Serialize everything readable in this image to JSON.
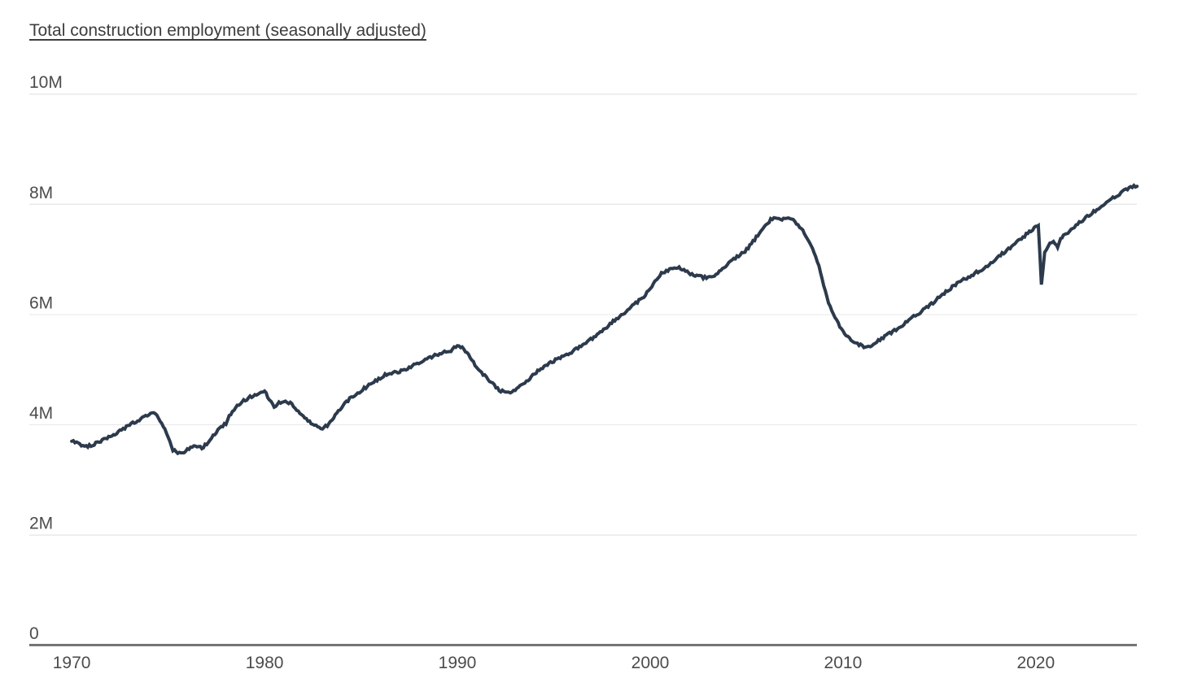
{
  "title": {
    "text": "Total construction employment (seasonally adjusted)"
  },
  "chart_data": {
    "type": "line",
    "title": "Total construction employment (seasonally adjusted)",
    "xlabel": "",
    "ylabel": "",
    "y_unit": "millions of workers",
    "xlim": [
      1967.8,
      2025.24
    ],
    "ylim": [
      0,
      10
    ],
    "grid": "horizontal-only",
    "legend": "none",
    "x_ticks": [
      1970,
      1980,
      1990,
      2000,
      2010,
      2020
    ],
    "y_ticks": [
      {
        "value": 0,
        "label": "0"
      },
      {
        "value": 2,
        "label": "2M"
      },
      {
        "value": 4,
        "label": "4M"
      },
      {
        "value": 6,
        "label": "6M"
      },
      {
        "value": 8,
        "label": "8M"
      },
      {
        "value": 10,
        "label": "10M"
      }
    ],
    "colors": {
      "line": "#2c3a4c",
      "grid": "#e8e8e8",
      "axis": "#757575",
      "tick_label": "#4c4c4c",
      "title": "#3d3d3d"
    },
    "noise_amplitude": 0.05,
    "series": [
      {
        "name": "Total construction employment (seasonally adjusted)",
        "points": [
          [
            1970,
            3.7
          ],
          [
            1970.25,
            3.67
          ],
          [
            1970.5,
            3.62
          ],
          [
            1970.75,
            3.6
          ],
          [
            1971,
            3.63
          ],
          [
            1971.25,
            3.66
          ],
          [
            1971.5,
            3.7
          ],
          [
            1971.75,
            3.74
          ],
          [
            1972,
            3.79
          ],
          [
            1972.25,
            3.84
          ],
          [
            1972.5,
            3.89
          ],
          [
            1972.75,
            3.94
          ],
          [
            1973,
            4.0
          ],
          [
            1973.25,
            4.05
          ],
          [
            1973.5,
            4.09
          ],
          [
            1973.75,
            4.13
          ],
          [
            1974,
            4.2
          ],
          [
            1974.25,
            4.22
          ],
          [
            1974.5,
            4.12
          ],
          [
            1974.75,
            3.98
          ],
          [
            1975,
            3.75
          ],
          [
            1975.25,
            3.55
          ],
          [
            1975.5,
            3.48
          ],
          [
            1975.75,
            3.5
          ],
          [
            1976,
            3.55
          ],
          [
            1976.25,
            3.6
          ],
          [
            1976.5,
            3.62
          ],
          [
            1976.75,
            3.58
          ],
          [
            1977,
            3.65
          ],
          [
            1977.25,
            3.76
          ],
          [
            1977.5,
            3.86
          ],
          [
            1977.75,
            3.96
          ],
          [
            1978,
            4.03
          ],
          [
            1978.25,
            4.2
          ],
          [
            1978.5,
            4.32
          ],
          [
            1978.75,
            4.4
          ],
          [
            1979,
            4.45
          ],
          [
            1979.25,
            4.5
          ],
          [
            1979.5,
            4.54
          ],
          [
            1979.75,
            4.58
          ],
          [
            1980,
            4.62
          ],
          [
            1980.25,
            4.45
          ],
          [
            1980.5,
            4.32
          ],
          [
            1980.75,
            4.4
          ],
          [
            1981,
            4.44
          ],
          [
            1981.25,
            4.4
          ],
          [
            1981.5,
            4.35
          ],
          [
            1981.75,
            4.25
          ],
          [
            1982,
            4.16
          ],
          [
            1982.25,
            4.08
          ],
          [
            1982.5,
            4.02
          ],
          [
            1982.75,
            3.95
          ],
          [
            1983,
            3.93
          ],
          [
            1983.25,
            3.99
          ],
          [
            1983.5,
            4.1
          ],
          [
            1983.75,
            4.22
          ],
          [
            1984,
            4.32
          ],
          [
            1984.25,
            4.42
          ],
          [
            1984.5,
            4.5
          ],
          [
            1984.75,
            4.56
          ],
          [
            1985,
            4.62
          ],
          [
            1985.25,
            4.68
          ],
          [
            1985.5,
            4.74
          ],
          [
            1985.75,
            4.8
          ],
          [
            1986,
            4.85
          ],
          [
            1986.25,
            4.9
          ],
          [
            1986.5,
            4.93
          ],
          [
            1986.75,
            4.95
          ],
          [
            1987,
            4.97
          ],
          [
            1987.25,
            5.0
          ],
          [
            1987.5,
            5.04
          ],
          [
            1987.75,
            5.08
          ],
          [
            1988,
            5.12
          ],
          [
            1988.25,
            5.16
          ],
          [
            1988.5,
            5.2
          ],
          [
            1988.75,
            5.24
          ],
          [
            1989,
            5.28
          ],
          [
            1989.25,
            5.32
          ],
          [
            1989.5,
            5.33
          ],
          [
            1989.75,
            5.36
          ],
          [
            1990,
            5.45
          ],
          [
            1990.25,
            5.4
          ],
          [
            1990.5,
            5.3
          ],
          [
            1990.75,
            5.18
          ],
          [
            1991,
            5.05
          ],
          [
            1991.25,
            4.94
          ],
          [
            1991.5,
            4.86
          ],
          [
            1991.75,
            4.78
          ],
          [
            1992,
            4.68
          ],
          [
            1992.25,
            4.62
          ],
          [
            1992.5,
            4.58
          ],
          [
            1992.75,
            4.6
          ],
          [
            1993,
            4.64
          ],
          [
            1993.25,
            4.7
          ],
          [
            1993.5,
            4.77
          ],
          [
            1993.75,
            4.84
          ],
          [
            1994,
            4.92
          ],
          [
            1994.25,
            5.0
          ],
          [
            1994.5,
            5.06
          ],
          [
            1994.75,
            5.12
          ],
          [
            1995,
            5.16
          ],
          [
            1995.25,
            5.2
          ],
          [
            1995.5,
            5.24
          ],
          [
            1995.75,
            5.28
          ],
          [
            1996,
            5.33
          ],
          [
            1996.25,
            5.39
          ],
          [
            1996.5,
            5.45
          ],
          [
            1996.75,
            5.51
          ],
          [
            1997,
            5.57
          ],
          [
            1997.25,
            5.63
          ],
          [
            1997.5,
            5.69
          ],
          [
            1997.75,
            5.77
          ],
          [
            1998,
            5.85
          ],
          [
            1998.25,
            5.92
          ],
          [
            1998.5,
            5.99
          ],
          [
            1998.75,
            6.06
          ],
          [
            1999,
            6.13
          ],
          [
            1999.25,
            6.2
          ],
          [
            1999.5,
            6.28
          ],
          [
            1999.75,
            6.36
          ],
          [
            2000,
            6.46
          ],
          [
            2000.25,
            6.6
          ],
          [
            2000.5,
            6.72
          ],
          [
            2000.75,
            6.78
          ],
          [
            2001,
            6.81
          ],
          [
            2001.25,
            6.84
          ],
          [
            2001.5,
            6.86
          ],
          [
            2001.75,
            6.8
          ],
          [
            2002,
            6.76
          ],
          [
            2002.25,
            6.72
          ],
          [
            2002.5,
            6.7
          ],
          [
            2002.75,
            6.67
          ],
          [
            2003,
            6.66
          ],
          [
            2003.25,
            6.68
          ],
          [
            2003.5,
            6.74
          ],
          [
            2003.75,
            6.82
          ],
          [
            2004,
            6.9
          ],
          [
            2004.25,
            6.98
          ],
          [
            2004.5,
            7.04
          ],
          [
            2004.75,
            7.1
          ],
          [
            2005,
            7.18
          ],
          [
            2005.25,
            7.28
          ],
          [
            2005.5,
            7.4
          ],
          [
            2005.75,
            7.52
          ],
          [
            2006,
            7.62
          ],
          [
            2006.25,
            7.72
          ],
          [
            2006.5,
            7.76
          ],
          [
            2006.75,
            7.73
          ],
          [
            2007,
            7.75
          ],
          [
            2007.25,
            7.73
          ],
          [
            2007.5,
            7.69
          ],
          [
            2007.75,
            7.6
          ],
          [
            2008,
            7.48
          ],
          [
            2008.25,
            7.33
          ],
          [
            2008.5,
            7.14
          ],
          [
            2008.75,
            6.88
          ],
          [
            2009,
            6.52
          ],
          [
            2009.25,
            6.22
          ],
          [
            2009.5,
            6.0
          ],
          [
            2009.75,
            5.84
          ],
          [
            2010,
            5.7
          ],
          [
            2010.25,
            5.6
          ],
          [
            2010.5,
            5.53
          ],
          [
            2010.75,
            5.47
          ],
          [
            2011,
            5.43
          ],
          [
            2011.25,
            5.4
          ],
          [
            2011.5,
            5.44
          ],
          [
            2011.75,
            5.5
          ],
          [
            2012,
            5.56
          ],
          [
            2012.25,
            5.62
          ],
          [
            2012.5,
            5.67
          ],
          [
            2012.75,
            5.73
          ],
          [
            2013,
            5.79
          ],
          [
            2013.25,
            5.86
          ],
          [
            2013.5,
            5.92
          ],
          [
            2013.75,
            5.98
          ],
          [
            2014,
            6.04
          ],
          [
            2014.25,
            6.1
          ],
          [
            2014.5,
            6.17
          ],
          [
            2014.75,
            6.24
          ],
          [
            2015,
            6.32
          ],
          [
            2015.25,
            6.39
          ],
          [
            2015.5,
            6.46
          ],
          [
            2015.75,
            6.52
          ],
          [
            2016,
            6.58
          ],
          [
            2016.25,
            6.63
          ],
          [
            2016.5,
            6.68
          ],
          [
            2016.75,
            6.73
          ],
          [
            2017,
            6.78
          ],
          [
            2017.25,
            6.83
          ],
          [
            2017.5,
            6.89
          ],
          [
            2017.75,
            6.96
          ],
          [
            2018,
            7.03
          ],
          [
            2018.25,
            7.1
          ],
          [
            2018.5,
            7.17
          ],
          [
            2018.75,
            7.24
          ],
          [
            2019,
            7.31
          ],
          [
            2019.25,
            7.38
          ],
          [
            2019.5,
            7.45
          ],
          [
            2019.75,
            7.52
          ],
          [
            2020,
            7.6
          ],
          [
            2020.13,
            7.64
          ],
          [
            2020.29,
            6.52
          ],
          [
            2020.46,
            7.12
          ],
          [
            2020.63,
            7.25
          ],
          [
            2020.83,
            7.32
          ],
          [
            2021,
            7.3
          ],
          [
            2021.13,
            7.22
          ],
          [
            2021.29,
            7.38
          ],
          [
            2021.5,
            7.44
          ],
          [
            2021.75,
            7.5
          ],
          [
            2022,
            7.58
          ],
          [
            2022.25,
            7.66
          ],
          [
            2022.5,
            7.73
          ],
          [
            2022.75,
            7.8
          ],
          [
            2023,
            7.87
          ],
          [
            2023.25,
            7.93
          ],
          [
            2023.5,
            7.99
          ],
          [
            2023.75,
            8.05
          ],
          [
            2024,
            8.11
          ],
          [
            2024.25,
            8.17
          ],
          [
            2024.5,
            8.23
          ],
          [
            2024.75,
            8.28
          ],
          [
            2025,
            8.31
          ],
          [
            2025.25,
            8.34
          ]
        ]
      }
    ]
  }
}
